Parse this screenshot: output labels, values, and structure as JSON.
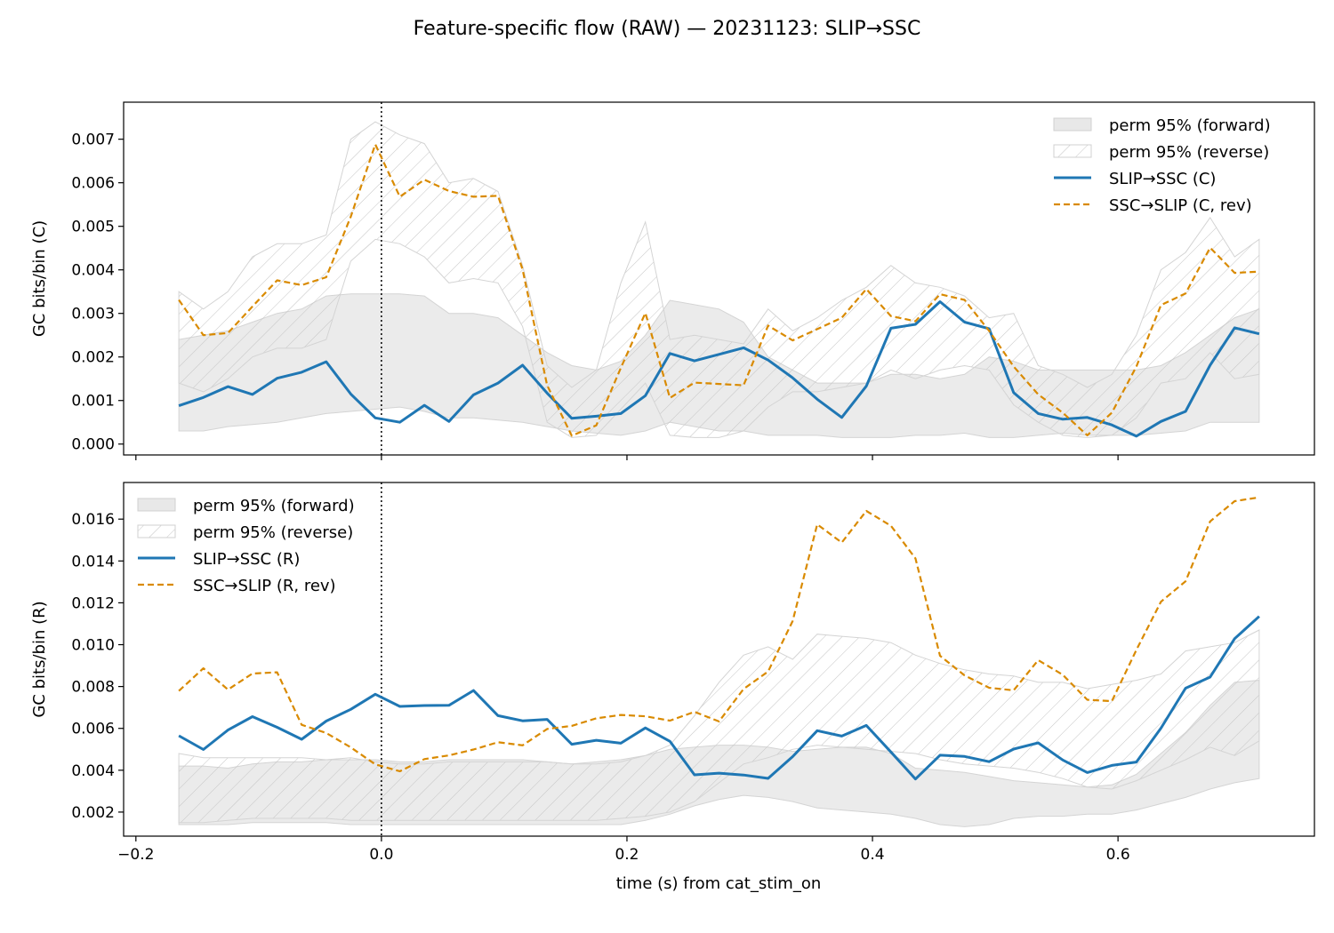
{
  "figure": {
    "title": "Feature-specific flow (RAW) — 20231123: SLIP→SSC",
    "xlabel": "time (s) from cat_stim_on"
  },
  "colors": {
    "forward": "#1f77b4",
    "reverse": "#d98a00",
    "band_fill": "#e0e0e0",
    "hatch": "#bdbdbd"
  },
  "chart_data": [
    {
      "type": "line",
      "ylabel": "GC bits/bin (C)",
      "xlim": [
        -0.21,
        0.76
      ],
      "ylim": [
        -0.00025,
        0.00785
      ],
      "xticks": [
        -0.2,
        0.0,
        0.2,
        0.4,
        0.6
      ],
      "xtick_labels": [
        "−0.2",
        "0.0",
        "0.2",
        "0.4",
        "0.6"
      ],
      "yticks": [
        0.0,
        0.001,
        0.002,
        0.003,
        0.004,
        0.005,
        0.006,
        0.007
      ],
      "ytick_labels": [
        "0.000",
        "0.001",
        "0.002",
        "0.003",
        "0.004",
        "0.005",
        "0.006",
        "0.007"
      ],
      "vline_x": 0.0,
      "legend": {
        "position": "top-right",
        "entries": [
          "perm 95% (forward)",
          "perm 95% (reverse)",
          "SLIP→SSC (C)",
          "SSC→SLIP (C, rev)"
        ]
      },
      "x": [
        -0.165,
        -0.145,
        -0.125,
        -0.105,
        -0.085,
        -0.065,
        -0.045,
        -0.025,
        -0.005,
        0.015,
        0.035,
        0.055,
        0.075,
        0.095,
        0.115,
        0.135,
        0.155,
        0.175,
        0.195,
        0.215,
        0.235,
        0.255,
        0.275,
        0.295,
        0.315,
        0.335,
        0.355,
        0.375,
        0.395,
        0.415,
        0.435,
        0.455,
        0.475,
        0.495,
        0.515,
        0.535,
        0.555,
        0.575,
        0.595,
        0.615,
        0.635,
        0.655,
        0.675,
        0.695,
        0.715
      ],
      "series": [
        {
          "name": "SLIP→SSC (C)",
          "style": "solid",
          "values": [
            0.00088,
            0.00107,
            0.00132,
            0.00114,
            0.00151,
            0.00165,
            0.00189,
            0.00115,
            0.0006,
            0.0005,
            0.00089,
            0.00052,
            0.00113,
            0.0014,
            0.00181,
            0.00117,
            0.00059,
            0.00064,
            0.0007,
            0.00111,
            0.00208,
            0.00191,
            0.00206,
            0.00221,
            0.00193,
            0.00152,
            0.00103,
            0.00061,
            0.00133,
            0.00266,
            0.00275,
            0.00327,
            0.0028,
            0.00265,
            0.00118,
            0.0007,
            0.00057,
            0.00061,
            0.00044,
            0.00018,
            0.00052,
            0.00075,
            0.00181,
            0.00267,
            0.00253
          ]
        },
        {
          "name": "SSC→SLIP (C, rev)",
          "style": "dashed",
          "values": [
            0.00331,
            0.0025,
            0.00255,
            0.00316,
            0.00376,
            0.00365,
            0.00383,
            0.00522,
            0.00688,
            0.00568,
            0.00607,
            0.00581,
            0.00568,
            0.0057,
            0.00401,
            0.00135,
            0.00019,
            0.00043,
            0.00175,
            0.00301,
            0.00106,
            0.00141,
            0.00138,
            0.00135,
            0.00272,
            0.00238,
            0.00264,
            0.0029,
            0.00356,
            0.00294,
            0.00282,
            0.00344,
            0.00331,
            0.0026,
            0.00178,
            0.00114,
            0.00072,
            0.0002,
            0.00072,
            0.00178,
            0.00319,
            0.00346,
            0.00451,
            0.00393,
            0.00396
          ]
        }
      ],
      "bands": [
        {
          "name": "perm 95% (forward)",
          "style": "fill",
          "lower": [
            0.0003,
            0.0003,
            0.0004,
            0.00045,
            0.0005,
            0.0006,
            0.0007,
            0.00075,
            0.0008,
            0.00085,
            0.00075,
            0.0006,
            0.0006,
            0.00055,
            0.0005,
            0.0004,
            0.0003,
            0.00025,
            0.0002,
            0.0003,
            0.0005,
            0.0004,
            0.0003,
            0.0003,
            0.0002,
            0.0002,
            0.0002,
            0.00015,
            0.00015,
            0.00015,
            0.0002,
            0.0002,
            0.00025,
            0.00015,
            0.00015,
            0.0002,
            0.00025,
            0.0002,
            0.0002,
            0.0002,
            0.00025,
            0.0003,
            0.0005,
            0.0005,
            0.0005
          ],
          "upper": [
            0.0024,
            0.0025,
            0.0026,
            0.0028,
            0.003,
            0.0031,
            0.0034,
            0.00345,
            0.00345,
            0.00345,
            0.0034,
            0.003,
            0.003,
            0.0029,
            0.0025,
            0.0021,
            0.0018,
            0.0017,
            0.0019,
            0.0025,
            0.0033,
            0.0032,
            0.0031,
            0.0028,
            0.002,
            0.0017,
            0.0014,
            0.0014,
            0.0014,
            0.0016,
            0.0016,
            0.0015,
            0.0016,
            0.002,
            0.0019,
            0.0017,
            0.0017,
            0.0017,
            0.0017,
            0.0017,
            0.0018,
            0.0021,
            0.0025,
            0.0029,
            0.0031
          ]
        },
        {
          "name": "perm 95% (reverse)",
          "style": "hatch",
          "lower": [
            0.0014,
            0.0012,
            0.0015,
            0.002,
            0.0022,
            0.0022,
            0.0024,
            0.0042,
            0.0047,
            0.0046,
            0.0043,
            0.0037,
            0.0038,
            0.0037,
            0.0027,
            0.0005,
            0.00015,
            0.0002,
            0.0008,
            0.0014,
            0.0002,
            0.00015,
            0.00015,
            0.0003,
            0.00085,
            0.0012,
            0.0012,
            0.0013,
            0.0014,
            0.0017,
            0.0015,
            0.0017,
            0.0018,
            0.0017,
            0.0009,
            0.0005,
            0.0002,
            0.00015,
            0.0002,
            0.0006,
            0.0014,
            0.0015,
            0.0021,
            0.0015,
            0.0016
          ],
          "upper": [
            0.0035,
            0.0031,
            0.0035,
            0.0043,
            0.0046,
            0.0046,
            0.0048,
            0.007,
            0.0074,
            0.0071,
            0.0069,
            0.006,
            0.0061,
            0.0058,
            0.0041,
            0.0018,
            0.0013,
            0.0017,
            0.0037,
            0.0051,
            0.0024,
            0.0025,
            0.0024,
            0.0023,
            0.0031,
            0.0026,
            0.0029,
            0.0033,
            0.0036,
            0.0041,
            0.0037,
            0.0036,
            0.0034,
            0.0029,
            0.003,
            0.0018,
            0.0016,
            0.0013,
            0.0016,
            0.0025,
            0.004,
            0.0044,
            0.0052,
            0.0043,
            0.0047
          ]
        }
      ]
    },
    {
      "type": "line",
      "ylabel": "GC bits/bin (R)",
      "xlim": [
        -0.21,
        0.76
      ],
      "ylim": [
        0.00085,
        0.01775
      ],
      "xticks": [
        -0.2,
        0.0,
        0.2,
        0.4,
        0.6
      ],
      "xtick_labels": [
        "−0.2",
        "0.0",
        "0.2",
        "0.4",
        "0.6"
      ],
      "yticks": [
        0.002,
        0.004,
        0.006,
        0.008,
        0.01,
        0.012,
        0.014,
        0.016
      ],
      "ytick_labels": [
        "0.002",
        "0.004",
        "0.006",
        "0.008",
        "0.010",
        "0.012",
        "0.014",
        "0.016"
      ],
      "vline_x": 0.0,
      "legend": {
        "position": "top-left",
        "entries": [
          "perm 95% (forward)",
          "perm 95% (reverse)",
          "SLIP→SSC (R)",
          "SSC→SLIP (R, rev)"
        ]
      },
      "x": [
        -0.165,
        -0.145,
        -0.125,
        -0.105,
        -0.085,
        -0.065,
        -0.045,
        -0.025,
        -0.005,
        0.015,
        0.035,
        0.055,
        0.075,
        0.095,
        0.115,
        0.135,
        0.155,
        0.175,
        0.195,
        0.215,
        0.235,
        0.255,
        0.275,
        0.295,
        0.315,
        0.335,
        0.355,
        0.375,
        0.395,
        0.415,
        0.435,
        0.455,
        0.475,
        0.495,
        0.515,
        0.535,
        0.555,
        0.575,
        0.595,
        0.615,
        0.635,
        0.655,
        0.675,
        0.695,
        0.715
      ],
      "series": [
        {
          "name": "SLIP→SSC (R)",
          "style": "solid",
          "values": [
            0.00565,
            0.00499,
            0.00592,
            0.00656,
            0.00605,
            0.00548,
            0.00635,
            0.00691,
            0.00763,
            0.00705,
            0.00709,
            0.0071,
            0.00781,
            0.00661,
            0.00636,
            0.00643,
            0.00524,
            0.00543,
            0.00529,
            0.00602,
            0.00538,
            0.00378,
            0.00386,
            0.00377,
            0.00361,
            0.00465,
            0.00589,
            0.00563,
            0.00614,
            0.00487,
            0.00358,
            0.00472,
            0.00466,
            0.00441,
            0.00501,
            0.00531,
            0.00449,
            0.00389,
            0.00423,
            0.00439,
            0.00601,
            0.00792,
            0.00845,
            0.01029,
            0.01135
          ]
        },
        {
          "name": "SSC→SLIP (R, rev)",
          "style": "dashed",
          "values": [
            0.00779,
            0.00887,
            0.00785,
            0.00862,
            0.00868,
            0.00617,
            0.00578,
            0.00509,
            0.00428,
            0.00395,
            0.00453,
            0.00471,
            0.00499,
            0.00534,
            0.00519,
            0.00597,
            0.00612,
            0.00648,
            0.00664,
            0.00658,
            0.00637,
            0.00679,
            0.00633,
            0.00788,
            0.00872,
            0.01113,
            0.01575,
            0.01488,
            0.01639,
            0.01568,
            0.01412,
            0.00947,
            0.00853,
            0.00794,
            0.00782,
            0.00926,
            0.00856,
            0.00737,
            0.0073,
            0.00975,
            0.01205,
            0.01303,
            0.01589,
            0.01686,
            0.01704
          ]
        }
      ],
      "bands": [
        {
          "name": "perm 95% (forward)",
          "style": "fill",
          "lower": [
            0.0014,
            0.0014,
            0.0014,
            0.0015,
            0.0015,
            0.0015,
            0.0015,
            0.0014,
            0.0014,
            0.0014,
            0.0014,
            0.0014,
            0.0014,
            0.0014,
            0.0014,
            0.0014,
            0.0014,
            0.0014,
            0.0014,
            0.0016,
            0.0019,
            0.0023,
            0.0026,
            0.0028,
            0.0027,
            0.0025,
            0.0022,
            0.0021,
            0.002,
            0.0019,
            0.0017,
            0.0014,
            0.0013,
            0.0014,
            0.0017,
            0.0018,
            0.0018,
            0.0019,
            0.0019,
            0.0021,
            0.0024,
            0.0027,
            0.0031,
            0.0034,
            0.0036
          ],
          "upper": [
            0.0042,
            0.0042,
            0.0041,
            0.0043,
            0.0044,
            0.0044,
            0.0045,
            0.0045,
            0.0045,
            0.0044,
            0.0044,
            0.0045,
            0.0045,
            0.0045,
            0.0045,
            0.0044,
            0.0043,
            0.0044,
            0.0045,
            0.0047,
            0.005,
            0.0051,
            0.0052,
            0.0052,
            0.0051,
            0.0049,
            0.005,
            0.0051,
            0.0051,
            0.0048,
            0.0041,
            0.004,
            0.0039,
            0.0037,
            0.0035,
            0.0034,
            0.0033,
            0.0032,
            0.0033,
            0.0038,
            0.0048,
            0.0058,
            0.0071,
            0.0082,
            0.0083
          ]
        },
        {
          "name": "perm 95% (reverse)",
          "style": "hatch",
          "lower": [
            0.0015,
            0.0015,
            0.0016,
            0.0017,
            0.0017,
            0.0017,
            0.0017,
            0.0016,
            0.0016,
            0.0016,
            0.0016,
            0.0016,
            0.0016,
            0.0016,
            0.0016,
            0.0016,
            0.0016,
            0.0016,
            0.0017,
            0.0018,
            0.002,
            0.0025,
            0.0034,
            0.0043,
            0.0046,
            0.005,
            0.0052,
            0.0051,
            0.005,
            0.0049,
            0.0048,
            0.0045,
            0.0043,
            0.0042,
            0.0041,
            0.0039,
            0.0036,
            0.0032,
            0.0031,
            0.0035,
            0.004,
            0.0045,
            0.0051,
            0.0047,
            0.0054
          ],
          "upper": [
            0.0048,
            0.0046,
            0.0046,
            0.0046,
            0.0046,
            0.0046,
            0.0045,
            0.0046,
            0.0044,
            0.0043,
            0.0043,
            0.0044,
            0.0044,
            0.0044,
            0.0044,
            0.0044,
            0.0043,
            0.0043,
            0.0044,
            0.0047,
            0.0052,
            0.0066,
            0.0082,
            0.0095,
            0.0099,
            0.0093,
            0.0105,
            0.0104,
            0.0103,
            0.0101,
            0.0095,
            0.0091,
            0.0088,
            0.0086,
            0.0085,
            0.0082,
            0.0082,
            0.0079,
            0.0081,
            0.0083,
            0.0086,
            0.0097,
            0.0099,
            0.0101,
            0.0107
          ]
        }
      ]
    }
  ]
}
